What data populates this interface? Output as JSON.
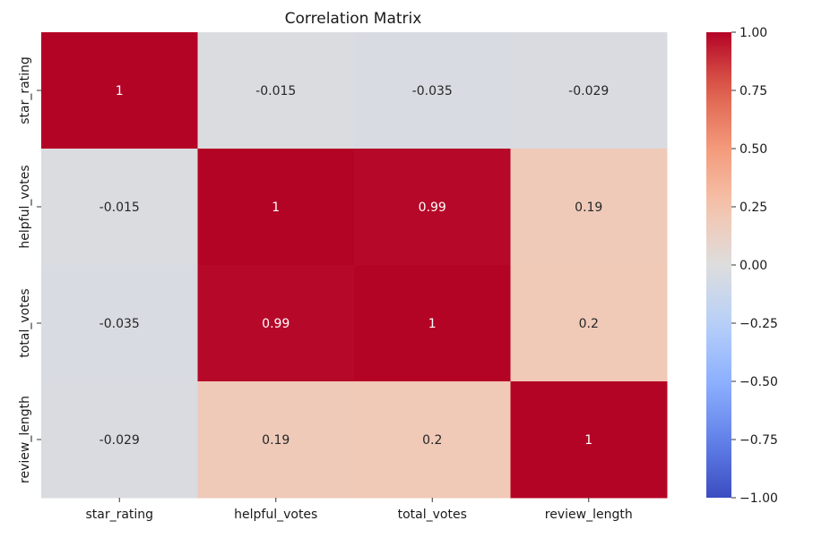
{
  "chart_data": {
    "type": "heatmap",
    "title": "Correlation Matrix",
    "xlabel": "",
    "ylabel": "",
    "x_labels": [
      "star_rating",
      "helpful_votes",
      "total_votes",
      "review_length"
    ],
    "y_labels": [
      "star_rating",
      "helpful_votes",
      "total_votes",
      "review_length"
    ],
    "values": [
      [
        1,
        -0.015,
        -0.035,
        -0.029
      ],
      [
        -0.015,
        1,
        0.99,
        0.19
      ],
      [
        -0.035,
        0.99,
        1,
        0.2
      ],
      [
        -0.029,
        0.19,
        0.2,
        1
      ]
    ],
    "annotations": [
      [
        "1",
        "-0.015",
        "-0.035",
        "-0.029"
      ],
      [
        "-0.015",
        "1",
        "0.99",
        "0.19"
      ],
      [
        "-0.035",
        "0.99",
        "1",
        "0.2"
      ],
      [
        "-0.029",
        "0.19",
        "0.2",
        "1"
      ]
    ],
    "colormap": "coolwarm",
    "vmin": -1.0,
    "vmax": 1.0,
    "colorbar_ticks": [
      1.0,
      0.75,
      0.5,
      0.25,
      0.0,
      -0.25,
      -0.5,
      -0.75,
      -1.0
    ],
    "colorbar_tick_labels": [
      "1.00",
      "0.75",
      "0.50",
      "0.25",
      "0.00",
      "−0.25",
      "−0.50",
      "−0.75",
      "−1.00"
    ],
    "grid": false,
    "colorbar_position": "right"
  }
}
